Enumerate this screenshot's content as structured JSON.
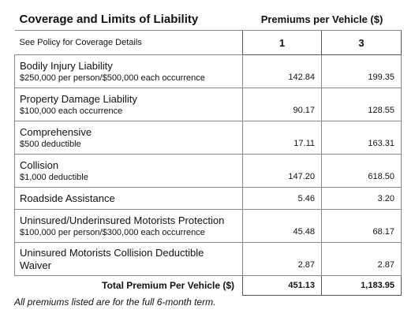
{
  "header": {
    "title": "Coverage and Limits of Liability",
    "premiums_heading": "Premiums per Vehicle ($)",
    "subtitle": "See Policy for Coverage Details",
    "vehicles": [
      "1",
      "3"
    ]
  },
  "rows": [
    {
      "coverage": "Bodily Injury Liability",
      "detail": "$250,000 per person/$500,000 each occurrence",
      "premiums": [
        "142.84",
        "199.35"
      ]
    },
    {
      "coverage": "Property Damage Liability",
      "detail": "$100,000 each occurrence",
      "premiums": [
        "90.17",
        "128.55"
      ]
    },
    {
      "coverage": "Comprehensive",
      "detail": "$500 deductible",
      "premiums": [
        "17.11",
        "163.31"
      ]
    },
    {
      "coverage": "Collision",
      "detail": "$1,000 deductible",
      "premiums": [
        "147.20",
        "618.50"
      ]
    },
    {
      "coverage": "Roadside Assistance",
      "premiums": [
        "5.46",
        "3.20"
      ]
    },
    {
      "coverage": "Uninsured/Underinsured Motorists Protection",
      "detail": "$100,000 per person/$300,000 each occurrence",
      "premiums": [
        "45.48",
        "68.17"
      ]
    },
    {
      "coverage": "Uninsured Motorists Collision Deductible Waiver",
      "premiums": [
        "2.87",
        "2.87"
      ]
    }
  ],
  "total": {
    "label": "Total Premium Per Vehicle ($)",
    "premiums": [
      "451.13",
      "1,183.95"
    ]
  },
  "footnote": "All premiums listed are for the full 6-month term."
}
